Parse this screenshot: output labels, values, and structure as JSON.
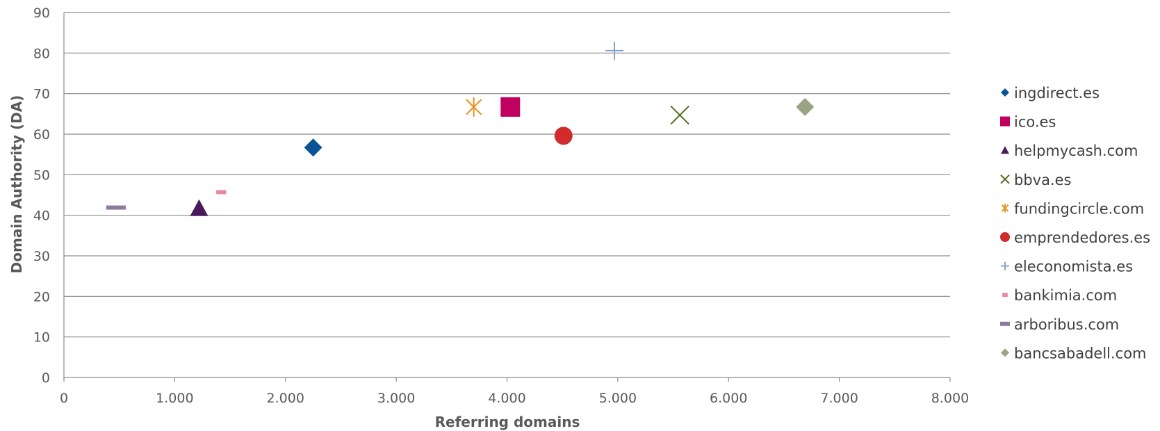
{
  "chart_data": {
    "type": "scatter",
    "xlabel": "Referring domains",
    "ylabel": "Domain Authority (DA)",
    "xlim": [
      0,
      8000
    ],
    "ylim": [
      0,
      90
    ],
    "x_ticks": [
      {
        "value": 0,
        "label": "0"
      },
      {
        "value": 1000,
        "label": "1.000"
      },
      {
        "value": 2000,
        "label": "2.000"
      },
      {
        "value": 3000,
        "label": "3.000"
      },
      {
        "value": 4000,
        "label": "4.000"
      },
      {
        "value": 5000,
        "label": "5.000"
      },
      {
        "value": 6000,
        "label": "6.000"
      },
      {
        "value": 7000,
        "label": "7.000"
      },
      {
        "value": 8000,
        "label": "8.000"
      }
    ],
    "y_ticks": [
      {
        "value": 0,
        "label": "0"
      },
      {
        "value": 10,
        "label": "10"
      },
      {
        "value": 20,
        "label": "20"
      },
      {
        "value": 30,
        "label": "30"
      },
      {
        "value": 40,
        "label": "40"
      },
      {
        "value": 50,
        "label": "50"
      },
      {
        "value": 60,
        "label": "60"
      },
      {
        "value": 70,
        "label": "70"
      },
      {
        "value": 80,
        "label": "80"
      },
      {
        "value": 90,
        "label": "90"
      }
    ],
    "grid": "horizontal",
    "legend_position": "right",
    "series": [
      {
        "name": "ingdirect.es",
        "marker": "diamond",
        "color": "#0B5394",
        "x": 2250,
        "y": 56.7
      },
      {
        "name": "ico.es",
        "marker": "square",
        "color": "#C00060",
        "x": 4030,
        "y": 66.7
      },
      {
        "name": "helpmycash.com",
        "marker": "triangle",
        "color": "#4A1B5A",
        "x": 1220,
        "y": 41.7
      },
      {
        "name": "bbva.es",
        "marker": "x",
        "color": "#556B1E",
        "x": 5560,
        "y": 64.7
      },
      {
        "name": "fundingcircle.com",
        "marker": "star",
        "color": "#E8901E",
        "x": 3700,
        "y": 66.7
      },
      {
        "name": "emprendedores.es",
        "marker": "circle",
        "color": "#D22B2B",
        "x": 4510,
        "y": 59.6
      },
      {
        "name": "eleconomista.es",
        "marker": "plus",
        "color": "#7F9CC8",
        "x": 4970,
        "y": 80.6
      },
      {
        "name": "bankimia.com",
        "marker": "short-dash",
        "color": "#E88AA0",
        "x": 1420,
        "y": 45.7
      },
      {
        "name": "arboribus.com",
        "marker": "dash",
        "color": "#8E7A9E",
        "x": 470,
        "y": 41.9
      },
      {
        "name": "bancsabadell.com",
        "marker": "diamond",
        "color": "#9AA384",
        "x": 6690,
        "y": 66.7
      }
    ]
  }
}
